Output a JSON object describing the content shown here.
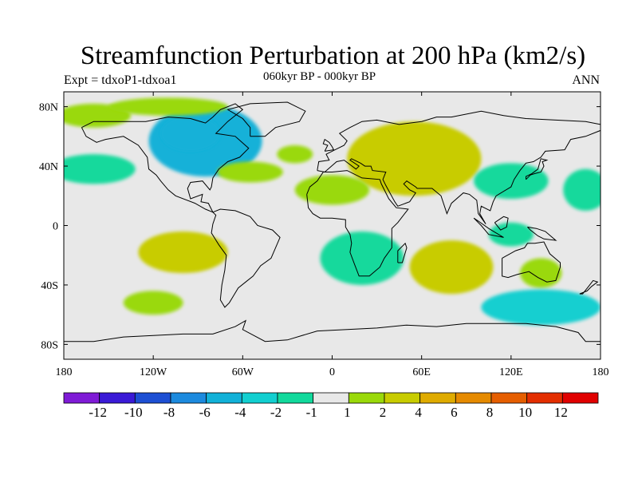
{
  "chart_data": {
    "type": "heatmap",
    "title": "Streamfunction Perturbation at 200 hPa (km2/s)",
    "left_string": "Expt = tdxoP1-tdxoa1",
    "center_string": "060kyr BP - 000kyr BP",
    "right_string": "ANN",
    "x_ticks": [
      {
        "value": -180,
        "label": "180"
      },
      {
        "value": -120,
        "label": "120W"
      },
      {
        "value": -60,
        "label": "60W"
      },
      {
        "value": 0,
        "label": "0"
      },
      {
        "value": 60,
        "label": "60E"
      },
      {
        "value": 120,
        "label": "120E"
      },
      {
        "value": 180,
        "label": "180"
      }
    ],
    "y_ticks": [
      {
        "value": 80,
        "label": "80N"
      },
      {
        "value": 40,
        "label": "40N"
      },
      {
        "value": 0,
        "label": "0"
      },
      {
        "value": -40,
        "label": "40S"
      },
      {
        "value": -80,
        "label": "80S"
      }
    ],
    "xlim": [
      -180,
      180
    ],
    "ylim": [
      -90,
      90
    ],
    "contour_levels": [
      -12,
      -10,
      -8,
      -6,
      -4,
      -2,
      -1,
      1,
      2,
      4,
      6,
      8,
      10,
      12
    ],
    "colorbar_colors": [
      "#7f1bd6",
      "#3a1ad6",
      "#1d4fd3",
      "#1c8ade",
      "#12b1d8",
      "#12cfd0",
      "#12d99c",
      "#e8e8e8",
      "#9ad90a",
      "#c8cc00",
      "#dfab00",
      "#e58a00",
      "#e55e00",
      "#e32e00",
      "#e00000"
    ],
    "regions": [
      {
        "name": "north-america-negative",
        "lon": -85,
        "lat": 57,
        "rlon": 38,
        "rlat": 24,
        "level": "-4"
      },
      {
        "name": "north-america-core",
        "lon": -95,
        "lat": 62,
        "rlon": 20,
        "rlat": 12,
        "level": "-4 to -6"
      },
      {
        "name": "north-pacific-negative",
        "lon": -160,
        "lat": 38,
        "rlon": 28,
        "rlat": 10,
        "level": "-2"
      },
      {
        "name": "arctic-positive-west",
        "lon": -160,
        "lat": 74,
        "rlon": 25,
        "rlat": 8,
        "level": "1 to 2"
      },
      {
        "name": "arctic-positive-canada",
        "lon": -110,
        "lat": 80,
        "rlon": 40,
        "rlat": 6,
        "level": "1 to 2"
      },
      {
        "name": "north-atlantic-positive",
        "lon": -55,
        "lat": 36,
        "rlon": 22,
        "rlat": 7,
        "level": "1 to 2"
      },
      {
        "name": "europe-positive",
        "lon": -25,
        "lat": 48,
        "rlon": 12,
        "rlat": 6,
        "level": "1 to 2"
      },
      {
        "name": "asia-positive",
        "lon": 55,
        "lat": 45,
        "rlon": 45,
        "rlat": 25,
        "level": "2 to 4"
      },
      {
        "name": "asia-core",
        "lon": 65,
        "lat": 43,
        "rlon": 22,
        "rlat": 14,
        "level": "4"
      },
      {
        "name": "africa-north-positive",
        "lon": 0,
        "lat": 24,
        "rlon": 25,
        "rlat": 10,
        "level": "1 to 2"
      },
      {
        "name": "east-asia-negative",
        "lon": 120,
        "lat": 30,
        "rlon": 25,
        "rlat": 12,
        "level": "-2"
      },
      {
        "name": "pacific-negative-east",
        "lon": 170,
        "lat": 24,
        "rlon": 15,
        "rlat": 14,
        "level": "-2"
      },
      {
        "name": "south-pacific-positive",
        "lon": -100,
        "lat": -18,
        "rlon": 30,
        "rlat": 14,
        "level": "2 to 4"
      },
      {
        "name": "southern-africa-negative",
        "lon": 20,
        "lat": -22,
        "rlon": 28,
        "rlat": 18,
        "level": "-2"
      },
      {
        "name": "indian-ocean-positive",
        "lon": 80,
        "lat": -28,
        "rlon": 28,
        "rlat": 18,
        "level": "2 to 4"
      },
      {
        "name": "australia-positive",
        "lon": 140,
        "lat": -32,
        "rlon": 14,
        "rlat": 10,
        "level": "2"
      },
      {
        "name": "southern-ocean-negative",
        "lon": 140,
        "lat": -55,
        "rlon": 40,
        "rlat": 12,
        "level": "-2 to -4"
      },
      {
        "name": "maritime-negative",
        "lon": 120,
        "lat": -6,
        "rlon": 15,
        "rlat": 8,
        "level": "-2"
      },
      {
        "name": "south-atlantic-positive",
        "lon": -120,
        "lat": -52,
        "rlon": 20,
        "rlat": 8,
        "level": "1 to 2"
      }
    ]
  },
  "colors": {
    "background": "#ffffff",
    "zero_fill": "#e8e8e8",
    "coastline": "#000000"
  }
}
